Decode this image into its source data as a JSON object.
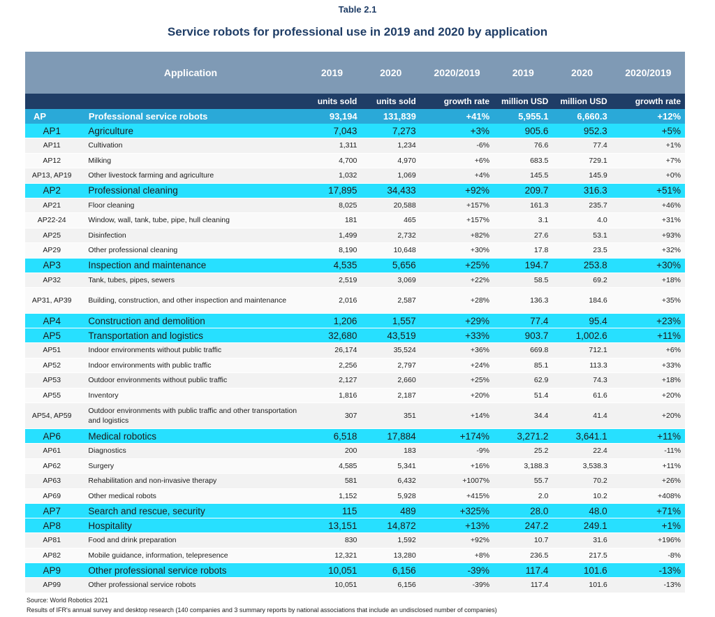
{
  "table_number": "Table 2.1",
  "title": "Service robots for professional use in 2019 and 2020 by application",
  "header": {
    "application": "Application",
    "col_u19": "2019",
    "col_u20": "2020",
    "col_ug": "2020/2019",
    "col_m19": "2019",
    "col_m20": "2020",
    "col_mg": "2020/2019"
  },
  "units": {
    "u19": "units sold",
    "u20": "units sold",
    "ug": "growth rate",
    "m19": "million USD",
    "m20": "million USD",
    "mg": "growth rate"
  },
  "total": {
    "code": "AP",
    "name": "Professional service robots",
    "u19": "93,194",
    "u20": "131,839",
    "ug": "+41%",
    "m19": "5,955.1",
    "m20": "6,660.3",
    "mg": "+12%"
  },
  "rows": [
    {
      "type": "group",
      "code": "AP1",
      "name": "Agriculture",
      "u19": "7,043",
      "u20": "7,273",
      "ug": "+3%",
      "m19": "905.6",
      "m20": "952.3",
      "mg": "+5%"
    },
    {
      "type": "sub",
      "code": "AP11",
      "name": "Cultivation",
      "u19": "1,311",
      "u20": "1,234",
      "ug": "-6%",
      "m19": "76.6",
      "m20": "77.4",
      "mg": "+1%"
    },
    {
      "type": "sub",
      "code": "AP12",
      "name": "Milking",
      "u19": "4,700",
      "u20": "4,970",
      "ug": "+6%",
      "m19": "683.5",
      "m20": "729.1",
      "mg": "+7%"
    },
    {
      "type": "sub",
      "code": "AP13, AP19",
      "name": "Other livestock farming and agriculture",
      "u19": "1,032",
      "u20": "1,069",
      "ug": "+4%",
      "m19": "145.5",
      "m20": "145.9",
      "mg": "+0%"
    },
    {
      "type": "group",
      "code": "AP2",
      "name": "Professional cleaning",
      "u19": "17,895",
      "u20": "34,433",
      "ug": "+92%",
      "m19": "209.7",
      "m20": "316.3",
      "mg": "+51%"
    },
    {
      "type": "sub",
      "code": "AP21",
      "name": "Floor cleaning",
      "u19": "8,025",
      "u20": "20,588",
      "ug": "+157%",
      "m19": "161.3",
      "m20": "235.7",
      "mg": "+46%"
    },
    {
      "type": "sub",
      "code": "AP22-24",
      "name": "Window, wall, tank, tube, pipe, hull cleaning",
      "u19": "181",
      "u20": "465",
      "ug": "+157%",
      "m19": "3.1",
      "m20": "4.0",
      "mg": "+31%"
    },
    {
      "type": "sub",
      "code": "AP25",
      "name": "Disinfection",
      "u19": "1,499",
      "u20": "2,732",
      "ug": "+82%",
      "m19": "27.6",
      "m20": "53.1",
      "mg": "+93%"
    },
    {
      "type": "sub",
      "code": "AP29",
      "name": "Other professional cleaning",
      "u19": "8,190",
      "u20": "10,648",
      "ug": "+30%",
      "m19": "17.8",
      "m20": "23.5",
      "mg": "+32%"
    },
    {
      "type": "group",
      "code": "AP3",
      "name": "Inspection and maintenance",
      "u19": "4,535",
      "u20": "5,656",
      "ug": "+25%",
      "m19": "194.7",
      "m20": "253.8",
      "mg": "+30%"
    },
    {
      "type": "sub",
      "code": "AP32",
      "name": "Tank, tubes, pipes, sewers",
      "u19": "2,519",
      "u20": "3,069",
      "ug": "+22%",
      "m19": "58.5",
      "m20": "69.2",
      "mg": "+18%"
    },
    {
      "type": "sub",
      "tall": true,
      "code": "AP31, AP39",
      "name": "Building, construction, and other inspection and maintenance",
      "u19": "2,016",
      "u20": "2,587",
      "ug": "+28%",
      "m19": "136.3",
      "m20": "184.6",
      "mg": "+35%"
    },
    {
      "type": "group",
      "code": "AP4",
      "name": "Construction and demolition",
      "u19": "1,206",
      "u20": "1,557",
      "ug": "+29%",
      "m19": "77.4",
      "m20": "95.4",
      "mg": "+23%"
    },
    {
      "type": "group",
      "code": "AP5",
      "name": "Transportation and logistics",
      "u19": "32,680",
      "u20": "43,519",
      "ug": "+33%",
      "m19": "903.7",
      "m20": "1,002.6",
      "mg": "+11%"
    },
    {
      "type": "sub",
      "code": "AP51",
      "name": "Indoor environments without public traffic",
      "u19": "26,174",
      "u20": "35,524",
      "ug": "+36%",
      "m19": "669.8",
      "m20": "712.1",
      "mg": "+6%"
    },
    {
      "type": "sub",
      "code": "AP52",
      "name": "Indoor environments with public traffic",
      "u19": "2,256",
      "u20": "2,797",
      "ug": "+24%",
      "m19": "85.1",
      "m20": "113.3",
      "mg": "+33%"
    },
    {
      "type": "sub",
      "code": "AP53",
      "name": "Outdoor environments without public traffic",
      "u19": "2,127",
      "u20": "2,660",
      "ug": "+25%",
      "m19": "62.9",
      "m20": "74.3",
      "mg": "+18%"
    },
    {
      "type": "sub",
      "code": "AP55",
      "name": "Inventory",
      "u19": "1,816",
      "u20": "2,187",
      "ug": "+20%",
      "m19": "51.4",
      "m20": "61.6",
      "mg": "+20%"
    },
    {
      "type": "sub",
      "tall": true,
      "wrap": true,
      "code": "AP54, AP59",
      "name": "Outdoor environments with public traffic and other transportation and logistics",
      "u19": "307",
      "u20": "351",
      "ug": "+14%",
      "m19": "34.4",
      "m20": "41.4",
      "mg": "+20%"
    },
    {
      "type": "group",
      "code": "AP6",
      "name": "Medical robotics",
      "u19": "6,518",
      "u20": "17,884",
      "ug": "+174%",
      "m19": "3,271.2",
      "m20": "3,641.1",
      "mg": "+11%"
    },
    {
      "type": "sub",
      "code": "AP61",
      "name": "Diagnostics",
      "u19": "200",
      "u20": "183",
      "ug": "-9%",
      "m19": "25.2",
      "m20": "22.4",
      "mg": "-11%"
    },
    {
      "type": "sub",
      "code": "AP62",
      "name": "Surgery",
      "u19": "4,585",
      "u20": "5,341",
      "ug": "+16%",
      "m19": "3,188.3",
      "m20": "3,538.3",
      "mg": "+11%"
    },
    {
      "type": "sub",
      "code": "AP63",
      "name": "Rehabilitation and non-invasive therapy",
      "u19": "581",
      "u20": "6,432",
      "ug": "+1007%",
      "m19": "55.7",
      "m20": "70.2",
      "mg": "+26%"
    },
    {
      "type": "sub",
      "code": "AP69",
      "name": "Other medical robots",
      "u19": "1,152",
      "u20": "5,928",
      "ug": "+415%",
      "m19": "2.0",
      "m20": "10.2",
      "mg": "+408%"
    },
    {
      "type": "group",
      "code": "AP7",
      "name": "Search and rescue, security",
      "u19": "115",
      "u20": "489",
      "ug": "+325%",
      "m19": "28.0",
      "m20": "48.0",
      "mg": "+71%"
    },
    {
      "type": "group",
      "code": "AP8",
      "name": "Hospitality",
      "u19": "13,151",
      "u20": "14,872",
      "ug": "+13%",
      "m19": "247.2",
      "m20": "249.1",
      "mg": "+1%"
    },
    {
      "type": "sub",
      "code": "AP81",
      "name": "Food and drink preparation",
      "u19": "830",
      "u20": "1,592",
      "ug": "+92%",
      "m19": "10.7",
      "m20": "31.6",
      "mg": "+196%"
    },
    {
      "type": "sub",
      "code": "AP82",
      "name": "Mobile guidance, information, telepresence",
      "u19": "12,321",
      "u20": "13,280",
      "ug": "+8%",
      "m19": "236.5",
      "m20": "217.5",
      "mg": "-8%"
    },
    {
      "type": "group",
      "code": "AP9",
      "name": "Other professional service robots",
      "u19": "10,051",
      "u20": "6,156",
      "ug": "-39%",
      "m19": "117.4",
      "m20": "101.6",
      "mg": "-13%"
    },
    {
      "type": "sub",
      "code": "AP99",
      "name": "Other professional service robots",
      "u19": "10,051",
      "u20": "6,156",
      "ug": "-39%",
      "m19": "117.4",
      "m20": "101.6",
      "mg": "-13%"
    }
  ],
  "footer": {
    "source": "Source: World Robotics 2021",
    "note": "Results of IFR's annual survey and desktop research (140 companies and 3 summary reports by national associations that include an undisclosed number of companies)"
  }
}
